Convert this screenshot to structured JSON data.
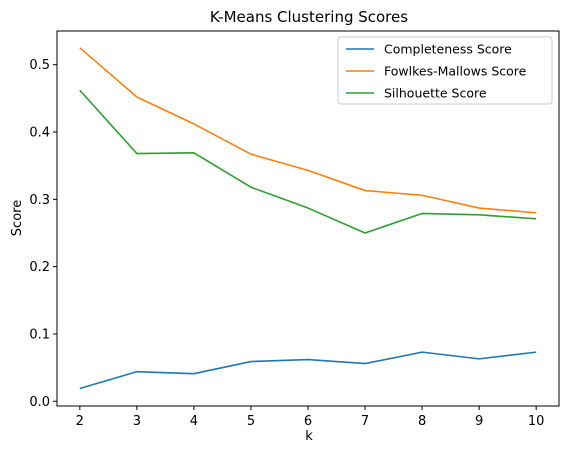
{
  "chart_data": {
    "type": "line",
    "title": "K-Means Clustering Scores",
    "xlabel": "k",
    "ylabel": "Score",
    "x": [
      2,
      3,
      4,
      5,
      6,
      7,
      8,
      9,
      10
    ],
    "xlim": [
      1.6,
      10.4
    ],
    "ylim": [
      -0.007,
      0.55
    ],
    "xticks": [
      2,
      3,
      4,
      5,
      6,
      7,
      8,
      9,
      10
    ],
    "yticks": [
      0.0,
      0.1,
      0.2,
      0.3,
      0.4,
      0.5
    ],
    "ytick_labels": [
      "0.0",
      "0.1",
      "0.2",
      "0.3",
      "0.4",
      "0.5"
    ],
    "grid": false,
    "legend_position": "top-right",
    "series": [
      {
        "name": "Completeness Score",
        "color": "#1f77b4",
        "values": [
          0.019,
          0.044,
          0.041,
          0.059,
          0.062,
          0.056,
          0.073,
          0.063,
          0.073
        ]
      },
      {
        "name": "Fowlkes-Mallows Score",
        "color": "#ff7f0e",
        "values": [
          0.525,
          0.452,
          0.412,
          0.367,
          0.343,
          0.313,
          0.306,
          0.287,
          0.28
        ]
      },
      {
        "name": "Silhouette Score",
        "color": "#2ca02c",
        "values": [
          0.462,
          0.368,
          0.369,
          0.318,
          0.287,
          0.25,
          0.279,
          0.277,
          0.271
        ]
      }
    ]
  }
}
